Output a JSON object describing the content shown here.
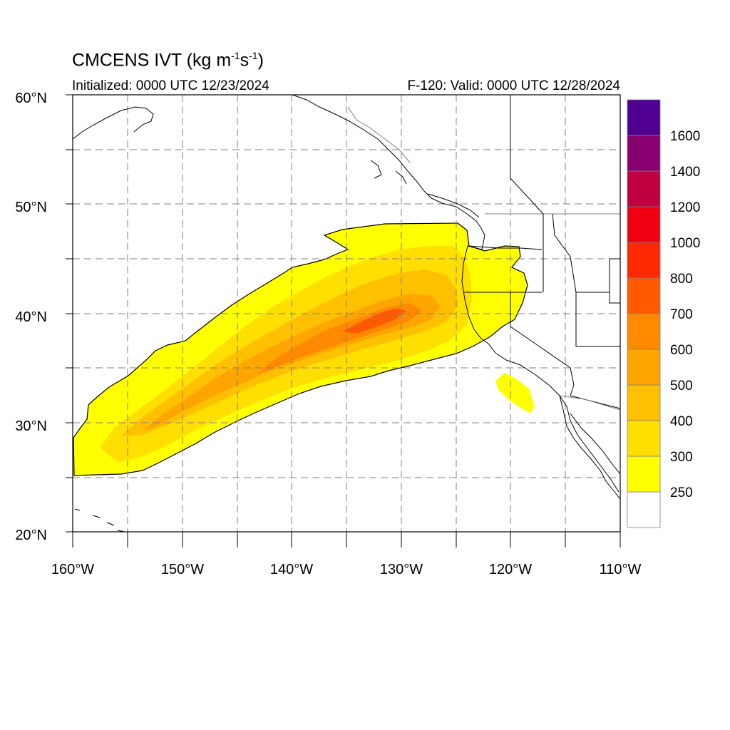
{
  "title": {
    "prefix": "CMCENS IVT (kg m",
    "sup1": "-1",
    "mid": "s",
    "sup2": "-1",
    "suffix": ")"
  },
  "initialized": "Initialized: 0000 UTC 12/23/2024",
  "valid": "F-120: Valid: 0000 UTC 12/28/2024",
  "axes": {
    "lat_labels": [
      "20°N",
      "30°N",
      "40°N",
      "50°N",
      "60°N"
    ],
    "lon_labels": [
      "160°W",
      "150°W",
      "140°W",
      "130°W",
      "120°W",
      "110°W"
    ]
  },
  "colorbar": {
    "labels": [
      "250",
      "300",
      "400",
      "500",
      "600",
      "700",
      "800",
      "1000",
      "1200",
      "1400",
      "1600"
    ],
    "colors": [
      "#ffffff",
      "#ffff00",
      "#ffdf00",
      "#ffc000",
      "#ffa500",
      "#ff8a00",
      "#ff5a00",
      "#ff2800",
      "#ee0010",
      "#c00040",
      "#880070",
      "#500090"
    ]
  }
}
